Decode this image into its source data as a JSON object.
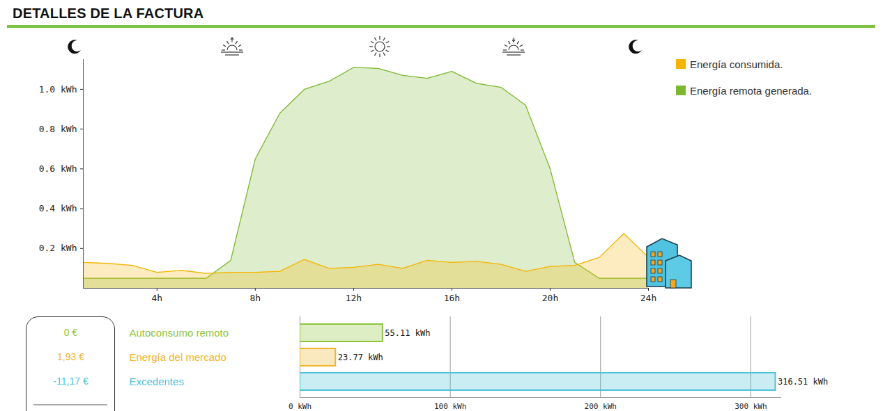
{
  "chart_data": [
    {
      "type": "area",
      "title": "DETALLES DE LA FACTURA",
      "x": [
        1,
        2,
        3,
        4,
        5,
        6,
        7,
        8,
        9,
        10,
        11,
        12,
        13,
        14,
        15,
        16,
        17,
        18,
        19,
        20,
        21,
        22,
        23,
        24
      ],
      "series": [
        {
          "name": "Energía consumida.",
          "color": "#f5b400",
          "values": [
            0.13,
            0.125,
            0.115,
            0.08,
            0.09,
            0.075,
            0.08,
            0.08,
            0.085,
            0.145,
            0.1,
            0.105,
            0.12,
            0.1,
            0.14,
            0.13,
            0.135,
            0.12,
            0.085,
            0.11,
            0.115,
            0.155,
            0.275,
            0.155
          ]
        },
        {
          "name": "Energía remota generada.",
          "color": "#7cb82f",
          "values": [
            0.05,
            0.05,
            0.05,
            0.05,
            0.05,
            0.05,
            0.14,
            0.65,
            0.88,
            1.0,
            1.04,
            1.11,
            1.105,
            1.07,
            1.055,
            1.09,
            1.03,
            1.01,
            0.92,
            0.6,
            0.13,
            0.05,
            0.05,
            0.05
          ]
        }
      ],
      "xlim": [
        1,
        24
      ],
      "xticks": [
        {
          "value": 4,
          "label": "4h"
        },
        {
          "value": 8,
          "label": "8h"
        },
        {
          "value": 12,
          "label": "12h"
        },
        {
          "value": 16,
          "label": "16h"
        },
        {
          "value": 20,
          "label": "20h"
        },
        {
          "value": 24,
          "label": "24h"
        }
      ],
      "ylim": [
        0,
        1.15
      ],
      "yticks": [
        {
          "value": 0.2,
          "label": "0.2 kWh"
        },
        {
          "value": 0.4,
          "label": "0.4 kWh"
        },
        {
          "value": 0.6,
          "label": "0.6 kWh"
        },
        {
          "value": 0.8,
          "label": "0.8 kWh"
        },
        {
          "value": 1.0,
          "label": "1.0 kWh"
        }
      ],
      "legend": "top-right"
    },
    {
      "type": "bar",
      "orientation": "horizontal",
      "categories": [
        "Autoconsumo remoto",
        "Energía del mercado",
        "Excedentes"
      ],
      "values": [
        55.11,
        23.77,
        316.51
      ],
      "value_labels": [
        "55.11 kWh",
        "23.77 kWh",
        "316.51 kWh"
      ],
      "colors": [
        "#8dc63f",
        "#f0b429",
        "#4dc3d8"
      ],
      "amount_labels": [
        "0 €",
        "1,93 €",
        "-11,17 €"
      ],
      "xlim": [
        0,
        320
      ],
      "xticks": [
        {
          "value": 0,
          "label": "0 kWh"
        },
        {
          "value": 100,
          "label": "100 kWh"
        },
        {
          "value": 200,
          "label": "200 kWh"
        },
        {
          "value": 300,
          "label": "300 kWh"
        }
      ],
      "grid": true,
      "data_labels": true
    }
  ]
}
